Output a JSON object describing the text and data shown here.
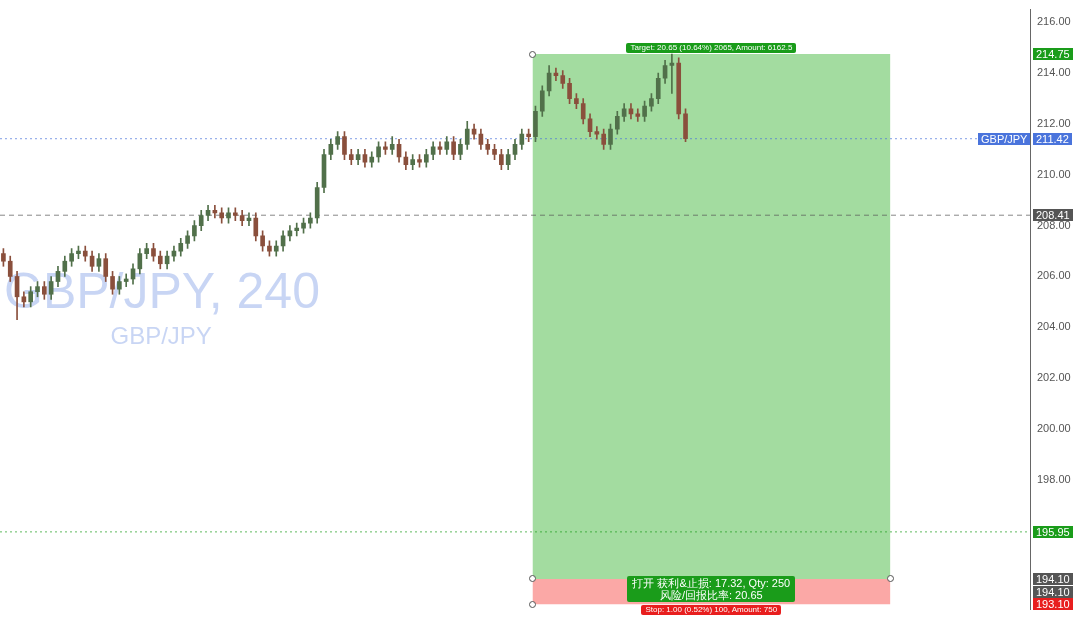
{
  "chart_data": {
    "type": "candlestick",
    "title": "GBP/JPY, 240",
    "subtitle": "GBP/JPY",
    "categories": [
      null,
      null,
      null,
      null,
      null,
      null,
      null,
      null,
      null,
      null,
      null,
      null,
      null,
      null,
      null,
      null,
      null,
      null,
      null,
      null,
      null,
      null,
      null,
      null,
      null,
      null,
      null,
      null,
      null,
      null,
      null,
      null,
      null,
      null,
      null,
      null,
      null,
      null,
      null,
      null,
      null,
      null,
      null,
      null,
      null,
      null,
      null,
      null,
      null,
      null,
      null,
      null,
      null,
      null,
      null,
      null,
      null,
      null,
      null,
      null,
      null,
      null,
      null,
      null,
      null,
      null,
      null,
      null,
      null,
      null,
      null,
      null,
      null,
      null,
      null,
      null,
      null,
      null,
      null,
      null,
      null,
      null,
      null,
      null,
      null,
      null,
      null,
      null,
      null,
      null,
      null,
      null,
      null,
      null,
      null,
      null,
      null,
      null,
      null,
      null,
      null,
      null,
      null,
      null,
      null,
      null,
      null,
      null,
      null,
      null,
      null,
      null,
      null,
      null,
      null,
      null,
      null,
      null,
      null,
      null,
      null,
      null,
      null,
      null,
      null,
      null,
      null,
      null,
      null,
      null,
      null,
      null,
      null,
      null,
      null,
      null,
      null,
      null,
      null,
      null,
      null,
      null,
      null,
      null,
      null,
      null,
      null,
      null,
      null,
      null,
      null
    ],
    "colors": [
      "#8a4f3c",
      "#8a4f3c",
      "#8a4f3c",
      "#8a4f3c",
      "#51704a",
      "#51704a",
      "#8a4f3c",
      "#51704a",
      "#51704a",
      "#51704a",
      "#51704a",
      "#51704a",
      "#8a4f3c",
      "#8a4f3c",
      "#51704a",
      "#8a4f3c",
      "#8a4f3c",
      "#51704a",
      "#51704a",
      "#51704a",
      "#51704a",
      "#51704a",
      "#8a4f3c",
      "#8a4f3c",
      "#51704a",
      "#51704a",
      "#51704a",
      "#51704a",
      "#51704a",
      "#51704a",
      "#51704a",
      "#8a4f3c",
      "#8a4f3c",
      "#51704a",
      "#8a4f3c",
      "#8a4f3c",
      "#51704a",
      "#8a4f3c",
      "#8a4f3c",
      "#8a4f3c",
      "#51704a",
      "#51704a",
      "#51704a",
      "#51704a",
      "#51704a",
      "#51704a",
      "#51704a",
      "#51704a",
      "#51704a",
      "#51704a",
      "#8a4f3c",
      "#8a4f3c",
      "#51704a",
      "#8a4f3c",
      "#51704a",
      "#51704a",
      "#8a4f3c",
      "#51704a",
      "#8a4f3c",
      "#8a4f3c",
      "#51704a",
      "#8a4f3c",
      "#51704a",
      "#51704a",
      "#8a4f3c",
      "#51704a",
      "#8a4f3c",
      "#51704a",
      "#51704a",
      "#8a4f3c",
      "#8a4f3c",
      "#8a4f3c",
      "#8a4f3c",
      "#8a4f3c",
      "#51704a",
      "#51704a",
      "#51704a",
      "#8a4f3c",
      "#51704a",
      "#51704a",
      "#51704a",
      "#8a4f3c",
      "#8a4f3c",
      "#8a4f3c",
      "#8a4f3c",
      "#8a4f3c",
      "#8a4f3c",
      "#8a4f3c",
      "#8a4f3c",
      "#51704a",
      "#51704a",
      "#51704a",
      "#8a4f3c",
      "#8a4f3c",
      "#51704a",
      "#51704a",
      "#51704a",
      "#51704a",
      "#51704a",
      "#8a4f3c",
      "#8a4f3c",
      null,
      null,
      null,
      null,
      null,
      null,
      null,
      null,
      null,
      null,
      null,
      null,
      null,
      null,
      null,
      null,
      null,
      null,
      null,
      null,
      null,
      null,
      null,
      null,
      null,
      null,
      null,
      null,
      null,
      null,
      null,
      null,
      null,
      null,
      null,
      null,
      null,
      null,
      null,
      null,
      null,
      null,
      null,
      null,
      null,
      null,
      null,
      null,
      null,
      null
    ],
    "ohlc": [
      [
        206.9,
        207.1,
        206.4,
        206.6
      ],
      [
        206.6,
        206.8,
        205.8,
        206.0
      ],
      [
        206.0,
        206.2,
        204.3,
        205.2
      ],
      [
        205.2,
        205.4,
        204.8,
        205.0
      ],
      [
        205.0,
        205.6,
        204.8,
        205.4
      ],
      [
        205.4,
        205.8,
        205.2,
        205.6
      ],
      [
        205.6,
        205.8,
        205.1,
        205.3
      ],
      [
        205.3,
        206.0,
        205.1,
        205.8
      ],
      [
        205.8,
        206.4,
        205.6,
        206.2
      ],
      [
        206.2,
        206.8,
        206.0,
        206.6
      ],
      [
        206.6,
        207.1,
        206.4,
        206.9
      ],
      [
        206.9,
        207.2,
        206.7,
        207.0
      ],
      [
        207.0,
        207.2,
        206.6,
        206.8
      ],
      [
        206.8,
        207.0,
        206.2,
        206.4
      ],
      [
        206.4,
        206.9,
        206.2,
        206.7
      ],
      [
        206.7,
        206.9,
        205.8,
        206.0
      ],
      [
        206.0,
        206.2,
        205.3,
        205.5
      ],
      [
        205.5,
        206.0,
        205.3,
        205.8
      ],
      [
        205.8,
        206.1,
        205.6,
        205.9
      ],
      [
        205.9,
        206.5,
        205.7,
        206.3
      ],
      [
        206.3,
        207.1,
        206.1,
        206.9
      ],
      [
        206.9,
        207.3,
        206.7,
        207.1
      ],
      [
        207.1,
        207.3,
        206.6,
        206.8
      ],
      [
        206.8,
        207.0,
        206.3,
        206.5
      ],
      [
        206.5,
        207.0,
        206.3,
        206.8
      ],
      [
        206.8,
        207.2,
        206.6,
        207.0
      ],
      [
        207.0,
        207.5,
        206.8,
        207.3
      ],
      [
        207.3,
        207.8,
        207.1,
        207.6
      ],
      [
        207.6,
        208.2,
        207.4,
        208.0
      ],
      [
        208.0,
        208.6,
        207.8,
        208.4
      ],
      [
        208.4,
        208.8,
        208.2,
        208.6
      ],
      [
        208.6,
        208.8,
        208.3,
        208.5
      ],
      [
        208.5,
        208.7,
        208.1,
        208.3
      ],
      [
        208.3,
        208.7,
        208.1,
        208.5
      ],
      [
        208.5,
        208.7,
        208.2,
        208.4
      ],
      [
        208.4,
        208.6,
        208.0,
        208.2
      ],
      [
        208.2,
        208.5,
        208.0,
        208.3
      ],
      [
        208.3,
        208.5,
        207.4,
        207.6
      ],
      [
        207.6,
        207.8,
        207.0,
        207.2
      ],
      [
        207.2,
        207.4,
        206.8,
        207.0
      ],
      [
        207.0,
        207.4,
        206.8,
        207.2
      ],
      [
        207.2,
        207.8,
        207.0,
        207.6
      ],
      [
        207.6,
        208.0,
        207.4,
        207.8
      ],
      [
        207.8,
        208.1,
        207.6,
        207.9
      ],
      [
        207.9,
        208.3,
        207.7,
        208.1
      ],
      [
        208.1,
        208.5,
        207.9,
        208.3
      ],
      [
        208.3,
        209.7,
        208.1,
        209.5
      ],
      [
        209.5,
        211.0,
        209.3,
        210.8
      ],
      [
        210.8,
        211.4,
        210.6,
        211.2
      ],
      [
        211.2,
        211.7,
        211.0,
        211.5
      ],
      [
        211.5,
        211.7,
        210.6,
        210.8
      ],
      [
        210.8,
        211.0,
        210.4,
        210.6
      ],
      [
        210.6,
        211.0,
        210.4,
        210.8
      ],
      [
        210.8,
        211.0,
        210.3,
        210.5
      ],
      [
        210.5,
        210.9,
        210.3,
        210.7
      ],
      [
        210.7,
        211.3,
        210.5,
        211.1
      ],
      [
        211.1,
        211.3,
        210.8,
        211.0
      ],
      [
        211.0,
        211.5,
        210.8,
        211.2
      ],
      [
        211.2,
        211.4,
        210.5,
        210.7
      ],
      [
        210.7,
        210.9,
        210.2,
        210.4
      ],
      [
        210.4,
        210.8,
        210.2,
        210.6
      ],
      [
        210.6,
        210.8,
        210.3,
        210.5
      ],
      [
        210.5,
        211.0,
        210.3,
        210.8
      ],
      [
        210.8,
        211.3,
        210.6,
        211.1
      ],
      [
        211.1,
        211.3,
        210.8,
        211.0
      ],
      [
        211.0,
        211.5,
        210.8,
        211.3
      ],
      [
        211.3,
        211.5,
        210.6,
        210.8
      ],
      [
        210.8,
        211.4,
        210.6,
        211.2
      ],
      [
        211.2,
        212.1,
        211.0,
        211.8
      ],
      [
        211.8,
        212.0,
        211.4,
        211.6
      ],
      [
        211.6,
        211.8,
        211.0,
        211.2
      ],
      [
        211.2,
        211.4,
        210.8,
        211.0
      ],
      [
        211.0,
        211.2,
        210.6,
        210.8
      ],
      [
        210.8,
        211.0,
        210.2,
        210.4
      ],
      [
        210.4,
        211.0,
        210.2,
        210.8
      ],
      [
        210.8,
        211.4,
        210.6,
        211.2
      ],
      [
        211.2,
        211.8,
        211.0,
        211.6
      ],
      [
        211.6,
        211.8,
        211.3,
        211.5
      ],
      [
        211.5,
        212.7,
        211.3,
        212.5
      ],
      [
        212.5,
        213.5,
        212.3,
        213.3
      ],
      [
        213.3,
        214.3,
        213.1,
        214.0
      ],
      [
        214.0,
        214.2,
        213.7,
        213.9
      ],
      [
        213.9,
        214.1,
        213.4,
        213.6
      ],
      [
        213.6,
        213.8,
        212.8,
        213.0
      ],
      [
        213.0,
        213.2,
        212.6,
        212.8
      ],
      [
        212.8,
        213.0,
        212.0,
        212.2
      ],
      [
        212.2,
        212.4,
        211.5,
        211.7
      ],
      [
        211.7,
        211.9,
        211.4,
        211.6
      ],
      [
        211.6,
        211.8,
        211.0,
        211.2
      ],
      [
        211.2,
        212.0,
        211.0,
        211.8
      ],
      [
        211.8,
        212.5,
        211.6,
        212.3
      ],
      [
        212.3,
        212.8,
        212.1,
        212.6
      ],
      [
        212.6,
        212.8,
        212.2,
        212.4
      ],
      [
        212.4,
        212.6,
        212.1,
        212.3
      ],
      [
        212.3,
        212.9,
        212.1,
        212.7
      ],
      [
        212.7,
        213.2,
        212.5,
        213.0
      ],
      [
        213.0,
        214.0,
        212.8,
        213.8
      ],
      [
        213.8,
        214.5,
        213.6,
        214.3
      ],
      [
        214.3,
        214.75,
        213.2,
        214.4
      ],
      [
        214.4,
        214.6,
        212.2,
        212.4
      ],
      [
        212.4,
        212.6,
        211.3,
        211.42
      ],
      null,
      null,
      null,
      null,
      null,
      null,
      null,
      null,
      null,
      null,
      null,
      null,
      null,
      null,
      null,
      null,
      null,
      null,
      null,
      null,
      null,
      null,
      null,
      null,
      null,
      null,
      null,
      null,
      null,
      null,
      null,
      null,
      null,
      null,
      null,
      null,
      null,
      null,
      null,
      null,
      null,
      null,
      null,
      null,
      null,
      null,
      null,
      null,
      null,
      null
    ],
    "ylim": [
      192.9,
      216.5
    ],
    "yticks": [
      {
        "value": 198,
        "label": "198.00"
      },
      {
        "value": 200,
        "label": "200.00"
      },
      {
        "value": 202,
        "label": "202.00"
      },
      {
        "value": 204,
        "label": "204.00"
      },
      {
        "value": 206,
        "label": "206.00"
      },
      {
        "value": 208,
        "label": "208.00"
      },
      {
        "value": 210,
        "label": "210.00"
      },
      {
        "value": 212,
        "label": "212.00"
      },
      {
        "value": 214,
        "label": "214.00"
      },
      {
        "value": 216,
        "label": "216.00"
      }
    ],
    "tick_labels": "y",
    "grid": false,
    "legend": false,
    "bands": [
      {
        "axis": "y",
        "from": 194.1,
        "to": 214.75,
        "label": "Target: 20.65 (10.64%) 2065, Amount: 6162.5",
        "color": "#a3dca0"
      },
      {
        "axis": "y",
        "from": 193.1,
        "to": 194.1,
        "label": "Stop: 1.00 (0.52%) 100, Amount: 750",
        "color": "#fba8a6"
      }
    ],
    "ref_lines": [
      {
        "axis": "y",
        "value": 211.42,
        "label": "GBP/JPY",
        "color": "#4a74dc",
        "line_style": "dotted"
      },
      {
        "axis": "y",
        "value": 208.41,
        "color": "#555555",
        "line_style": "dashed"
      },
      {
        "axis": "y",
        "value": 195.95,
        "color": "#1a9c1a",
        "line_style": "dotted"
      }
    ],
    "annotations": [
      "打开 获利&止损: 17.32, Qty: 250\n风险/回报比率: 20.65",
      "214.75",
      "211.42",
      "208.41",
      "195.95",
      "194.10",
      "194.10",
      "193.10"
    ]
  }
}
